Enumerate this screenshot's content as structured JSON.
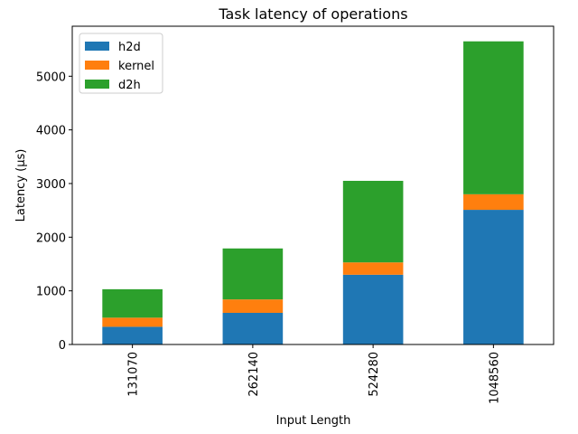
{
  "chart_data": {
    "type": "bar",
    "stacked": true,
    "title": "Task latency of operations",
    "xlabel": "Input Length",
    "ylabel": "Latency (μs)",
    "categories": [
      "131070",
      "262140",
      "524280",
      "1048560"
    ],
    "series": [
      {
        "name": "h2d",
        "color": "#1f77b4",
        "values": [
          330,
          590,
          1300,
          2510
        ]
      },
      {
        "name": "kernel",
        "color": "#ff7f0e",
        "values": [
          170,
          250,
          230,
          290
        ]
      },
      {
        "name": "d2h",
        "color": "#2ca02c",
        "values": [
          530,
          950,
          1520,
          2850
        ]
      }
    ],
    "ylim": [
      0,
      5932
    ],
    "yticks": [
      0,
      1000,
      2000,
      3000,
      4000,
      5000
    ],
    "grid": false,
    "legend_position": "top-left"
  }
}
